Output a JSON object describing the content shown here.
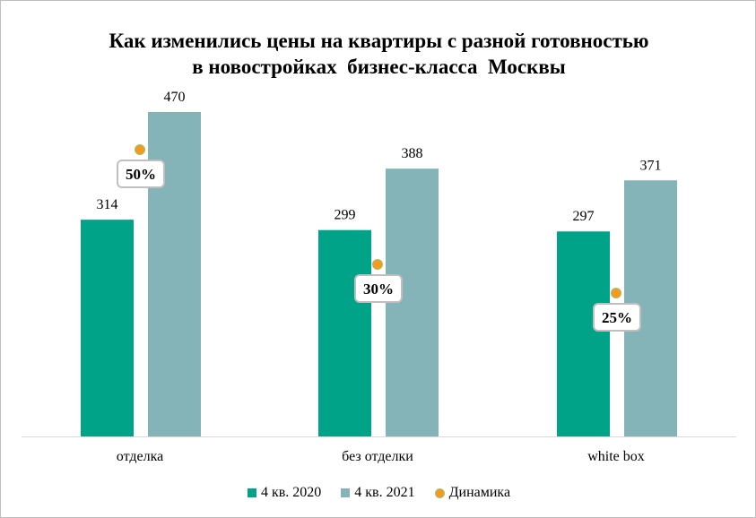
{
  "chart_data": {
    "type": "bar",
    "title": "Как изменились цены на квартиры с разной готовностью в новостройках бизнес-класса Москвы",
    "title_lines": [
      "Как изменились цены на квартиры с разной готовностью",
      "в новостройках  бизнес-класса  Москвы"
    ],
    "categories": [
      "отделка",
      "без отделки",
      "white box"
    ],
    "series": [
      {
        "name": "4 кв. 2020",
        "values": [
          314,
          299,
          297
        ],
        "color": "#00a387"
      },
      {
        "name": "4 кв. 2021",
        "values": [
          470,
          388,
          371
        ],
        "color": "#84b4b8"
      }
    ],
    "dynamics": {
      "name": "Динамика",
      "values": [
        50,
        30,
        25
      ],
      "labels": [
        "50%",
        "30%",
        "25%"
      ],
      "color": "#f39a1f",
      "axis": "secondary"
    },
    "ylim": [
      0,
      470
    ],
    "legend": "bottom",
    "grid": false
  }
}
